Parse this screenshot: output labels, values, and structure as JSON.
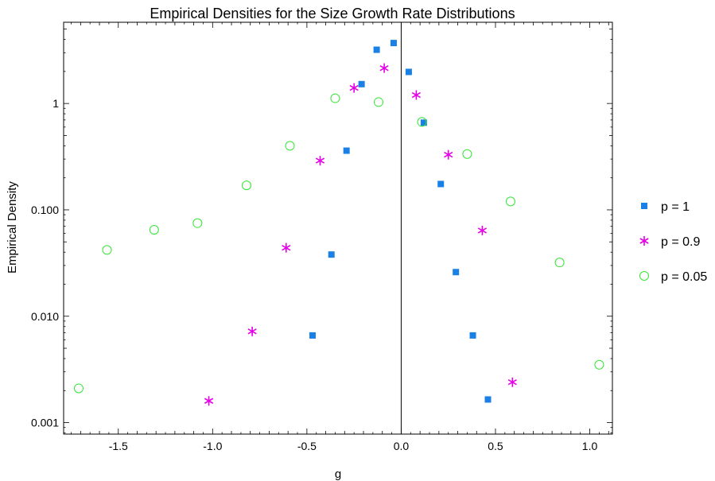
{
  "chart_data": {
    "type": "scatter",
    "title": "Empirical Densities for the Size Growth Rate Distributions",
    "xlabel": "g",
    "ylabel": "Empirical Density",
    "xlim": [
      -1.79,
      1.12
    ],
    "ylim": [
      0.00078,
      5.8
    ],
    "yscale": "log",
    "xticks": [
      -1.5,
      -1.0,
      -0.5,
      0.0,
      0.5,
      1.0
    ],
    "xtick_labels": [
      "-1.5",
      "-1.0",
      "-0.5",
      "0.0",
      "0.5",
      "1.0"
    ],
    "yticks": [
      0.001,
      0.01,
      0.1,
      1
    ],
    "ytick_labels": [
      "0.001",
      "0.010",
      "0.100",
      "1"
    ],
    "vline_x": 0,
    "grid": false,
    "legend_position": "right",
    "series": [
      {
        "name": "p = 1",
        "marker": "square",
        "color": "#1a80e6",
        "points": [
          {
            "x": -0.47,
            "y": 0.0066
          },
          {
            "x": -0.37,
            "y": 0.038
          },
          {
            "x": -0.29,
            "y": 0.36
          },
          {
            "x": -0.21,
            "y": 1.52
          },
          {
            "x": -0.13,
            "y": 3.2
          },
          {
            "x": -0.04,
            "y": 3.7
          },
          {
            "x": 0.04,
            "y": 1.98
          },
          {
            "x": 0.12,
            "y": 0.66
          },
          {
            "x": 0.21,
            "y": 0.175
          },
          {
            "x": 0.29,
            "y": 0.026
          },
          {
            "x": 0.38,
            "y": 0.0066
          },
          {
            "x": 0.46,
            "y": 0.00165
          }
        ]
      },
      {
        "name": "p = 0.9",
        "marker": "star",
        "color": "#e600e6",
        "points": [
          {
            "x": -1.02,
            "y": 0.0016
          },
          {
            "x": -0.79,
            "y": 0.0072
          },
          {
            "x": -0.61,
            "y": 0.044
          },
          {
            "x": -0.43,
            "y": 0.29
          },
          {
            "x": -0.25,
            "y": 1.4
          },
          {
            "x": -0.09,
            "y": 2.15
          },
          {
            "x": 0.08,
            "y": 1.2
          },
          {
            "x": 0.25,
            "y": 0.33
          },
          {
            "x": 0.43,
            "y": 0.064
          },
          {
            "x": 0.59,
            "y": 0.0024
          }
        ]
      },
      {
        "name": "p = 0.05",
        "marker": "circle",
        "color": "#33e633",
        "points": [
          {
            "x": -1.71,
            "y": 0.0021
          },
          {
            "x": -1.56,
            "y": 0.042
          },
          {
            "x": -1.31,
            "y": 0.065
          },
          {
            "x": -1.08,
            "y": 0.075
          },
          {
            "x": -0.82,
            "y": 0.17
          },
          {
            "x": -0.59,
            "y": 0.4
          },
          {
            "x": -0.35,
            "y": 1.12
          },
          {
            "x": -0.12,
            "y": 1.03
          },
          {
            "x": 0.11,
            "y": 0.67
          },
          {
            "x": 0.35,
            "y": 0.335
          },
          {
            "x": 0.58,
            "y": 0.12
          },
          {
            "x": 0.84,
            "y": 0.032
          },
          {
            "x": 1.05,
            "y": 0.0035
          }
        ]
      }
    ]
  }
}
